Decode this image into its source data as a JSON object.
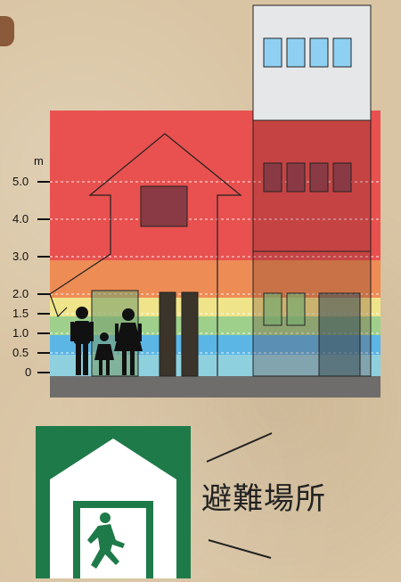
{
  "scale": {
    "unit": "m",
    "ticks": [
      "5.0",
      "4.0",
      "3.0",
      "2.0",
      "1.5",
      "1.0",
      "0.5",
      "0"
    ]
  },
  "colors": {
    "level_above_3m": "#e8514f",
    "level_2_to_3m": "#ee8c55",
    "level_1_5_to_2m": "#efe48a",
    "level_1_to_1_5m": "#9ed08c",
    "level_0_5_to_1m": "#5bb6e6",
    "level_0_to_0_5m": "#8fd0de",
    "ground": "#6f6d6c",
    "sign_green": "#1f7a4a"
  },
  "sign": {
    "icon": "evacuation-shelter-icon"
  },
  "label": "避難場所"
}
